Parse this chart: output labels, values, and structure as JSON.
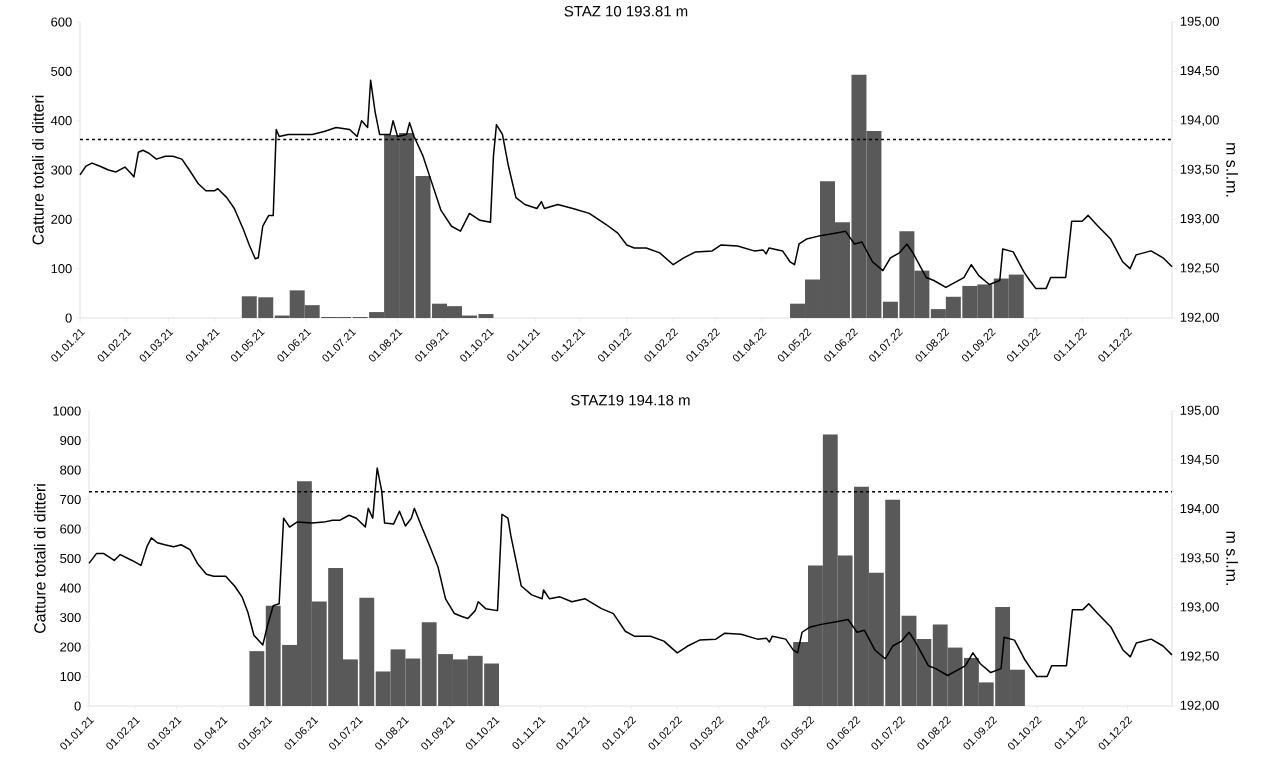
{
  "chart_data": [
    {
      "type": "bar",
      "title": "STAZ 10 193.81 m",
      "ylabel": "Catture totali di ditteri",
      "y2label": "m s.l.m.",
      "xlim": [
        "2021-01-01",
        "2022-12-31"
      ],
      "xticks": [
        {
          "value": "2021-01-01",
          "label": "01.01.21"
        },
        {
          "value": "2021-02-01",
          "label": "01.02.21"
        },
        {
          "value": "2021-03-01",
          "label": "01.03.21"
        },
        {
          "value": "2021-04-01",
          "label": "01.04.21"
        },
        {
          "value": "2021-05-01",
          "label": "01.05.21"
        },
        {
          "value": "2021-06-01",
          "label": "01.06.21"
        },
        {
          "value": "2021-07-01",
          "label": "01.07.21"
        },
        {
          "value": "2021-08-01",
          "label": "01.08.21"
        },
        {
          "value": "2021-09-01",
          "label": "01.09.21"
        },
        {
          "value": "2021-10-01",
          "label": "01.10.21"
        },
        {
          "value": "2021-11-01",
          "label": "01.11.21"
        },
        {
          "value": "2021-12-01",
          "label": "01.12.21"
        },
        {
          "value": "2022-01-01",
          "label": "01.01.22"
        },
        {
          "value": "2022-02-01",
          "label": "01.02.22"
        },
        {
          "value": "2022-03-01",
          "label": "01.03.22"
        },
        {
          "value": "2022-04-01",
          "label": "01.04.22"
        },
        {
          "value": "2022-05-01",
          "label": "01.05.22"
        },
        {
          "value": "2022-06-01",
          "label": "01.06.22"
        },
        {
          "value": "2022-07-01",
          "label": "01.07.22"
        },
        {
          "value": "2022-08-01",
          "label": "01.08.22"
        },
        {
          "value": "2022-09-01",
          "label": "01.09.22"
        },
        {
          "value": "2022-10-01",
          "label": "01.10.22"
        },
        {
          "value": "2022-11-01",
          "label": "01.11.22"
        },
        {
          "value": "2022-12-01",
          "label": "01.12.22"
        }
      ],
      "ylim": [
        0,
        600
      ],
      "yticks": [
        0,
        100,
        200,
        300,
        400,
        500,
        600
      ],
      "y2lim": [
        192,
        195
      ],
      "y2ticks": [
        {
          "value": 192,
          "label": "192,00"
        },
        {
          "value": 192.5,
          "label": "192,50"
        },
        {
          "value": 193,
          "label": "193,00"
        },
        {
          "value": 193.5,
          "label": "193,50"
        },
        {
          "value": 194,
          "label": "194,00"
        },
        {
          "value": 194.5,
          "label": "194,50"
        },
        {
          "value": 195,
          "label": "195,00"
        }
      ],
      "ref_lines": [
        {
          "axis": "y2",
          "value": 193.81,
          "color": "#000000",
          "line_style": "dashed"
        }
      ],
      "series": [
        {
          "color": "#595959",
          "x": [
            "2021-04-24",
            "2021-05-05",
            "2021-05-16",
            "2021-05-26",
            "2021-06-05",
            "2021-06-16",
            "2021-06-26",
            "2021-07-07",
            "2021-07-18",
            "2021-07-28",
            "2021-08-07",
            "2021-08-18",
            "2021-08-29",
            "2021-09-08",
            "2021-09-18",
            "2021-09-29",
            "2022-04-25",
            "2022-05-05",
            "2022-05-15",
            "2022-05-25",
            "2022-06-05",
            "2022-06-15",
            "2022-06-26",
            "2022-07-07",
            "2022-07-17",
            "2022-07-28",
            "2022-08-07",
            "2022-08-18",
            "2022-08-28",
            "2022-09-08",
            "2022-09-18"
          ],
          "values": [
            44,
            42,
            5,
            56,
            26,
            2,
            2,
            2,
            12,
            371,
            375,
            288,
            29,
            24,
            5,
            8,
            29,
            78,
            277,
            194,
            493,
            379,
            33,
            176,
            96,
            18,
            43,
            65,
            68,
            80,
            88
          ]
        },
        {
          "type": "line",
          "axis": "y2",
          "color": "#000000",
          "x": [
            "2021-01-01",
            "2021-01-05",
            "2021-01-09",
            "2021-01-14",
            "2021-01-20",
            "2021-01-25",
            "2021-01-31",
            "2021-02-05",
            "2021-02-06",
            "2021-02-09",
            "2021-02-12",
            "2021-02-16",
            "2021-02-21",
            "2021-02-27",
            "2021-03-04",
            "2021-03-10",
            "2021-03-15",
            "2021-03-21",
            "2021-03-26",
            "2021-04-01",
            "2021-04-03",
            "2021-04-09",
            "2021-04-14",
            "2021-04-20",
            "2021-04-24",
            "2021-04-28",
            "2021-04-30",
            "2021-05-03",
            "2021-05-07",
            "2021-05-10",
            "2021-05-12",
            "2021-05-14",
            "2021-05-20",
            "2021-05-25",
            "2021-06-05",
            "2021-06-13",
            "2021-06-21",
            "2021-06-30",
            "2021-07-05",
            "2021-07-08",
            "2021-07-12",
            "2021-07-14",
            "2021-07-17",
            "2021-07-20",
            "2021-07-27",
            "2021-07-29",
            "2021-08-01",
            "2021-08-07",
            "2021-08-09",
            "2021-08-12",
            "2021-08-18",
            "2021-08-23",
            "2021-08-30",
            "2021-09-06",
            "2021-09-12",
            "2021-09-18",
            "2021-09-22",
            "2021-09-25",
            "2021-10-02",
            "2021-10-04",
            "2021-10-06",
            "2021-10-10",
            "2021-10-14",
            "2021-10-19",
            "2021-10-25",
            "2021-11-02",
            "2021-11-05",
            "2021-11-07",
            "2021-11-16",
            "2021-11-26",
            "2021-12-07",
            "2021-12-18",
            "2021-12-26",
            "2022-01-01",
            "2022-01-06",
            "2022-01-14",
            "2022-01-23",
            "2022-02-01",
            "2022-02-08",
            "2022-02-16",
            "2022-02-27",
            "2022-03-05",
            "2022-03-16",
            "2022-03-27",
            "2022-04-02",
            "2022-04-04",
            "2022-04-06",
            "2022-04-15",
            "2022-04-20",
            "2022-04-23",
            "2022-04-26",
            "2022-05-01",
            "2022-05-09",
            "2022-05-20",
            "2022-05-27",
            "2022-06-02",
            "2022-06-07",
            "2022-06-14",
            "2022-06-21",
            "2022-06-26",
            "2022-07-02",
            "2022-07-07",
            "2022-07-11",
            "2022-07-20",
            "2022-07-25",
            "2022-08-02",
            "2022-08-08",
            "2022-08-14",
            "2022-08-19",
            "2022-08-24",
            "2022-08-31",
            "2022-09-07",
            "2022-09-09",
            "2022-09-16",
            "2022-09-23",
            "2022-09-27",
            "2022-10-01",
            "2022-10-08",
            "2022-10-11",
            "2022-10-21",
            "2022-10-25",
            "2022-11-01",
            "2022-11-05",
            "2022-11-11",
            "2022-11-20",
            "2022-11-28",
            "2022-12-03",
            "2022-12-07",
            "2022-12-17",
            "2022-12-25",
            "2022-12-31"
          ],
          "values": [
            193.45,
            193.54,
            193.57,
            193.54,
            193.5,
            193.48,
            193.53,
            193.45,
            193.43,
            193.68,
            193.7,
            193.67,
            193.61,
            193.64,
            193.64,
            193.61,
            193.5,
            193.36,
            193.29,
            193.29,
            193.31,
            193.22,
            193.11,
            192.9,
            192.74,
            192.6,
            192.61,
            192.93,
            193.04,
            193.04,
            193.91,
            193.84,
            193.86,
            193.86,
            193.86,
            193.89,
            193.93,
            193.91,
            193.84,
            194.0,
            193.93,
            194.41,
            194.09,
            193.86,
            193.86,
            194.0,
            193.84,
            193.86,
            193.98,
            193.84,
            193.64,
            193.41,
            193.09,
            192.93,
            192.88,
            193.06,
            193.02,
            192.99,
            192.97,
            193.64,
            193.96,
            193.86,
            193.54,
            193.22,
            193.15,
            193.11,
            193.18,
            193.11,
            193.15,
            193.11,
            193.06,
            192.95,
            192.86,
            192.74,
            192.71,
            192.71,
            192.66,
            192.54,
            192.61,
            192.67,
            192.68,
            192.74,
            192.73,
            192.68,
            192.69,
            192.65,
            192.71,
            192.68,
            192.57,
            192.54,
            192.75,
            192.8,
            192.83,
            192.86,
            192.88,
            192.75,
            192.77,
            192.57,
            192.48,
            192.61,
            192.66,
            192.75,
            192.66,
            192.41,
            192.38,
            192.31,
            192.36,
            192.41,
            192.54,
            192.43,
            192.34,
            192.38,
            192.7,
            192.67,
            192.47,
            192.38,
            192.3,
            192.3,
            192.41,
            192.41,
            192.98,
            192.98,
            193.04,
            192.94,
            192.8,
            192.57,
            192.5,
            192.64,
            192.68,
            192.61,
            192.52
          ]
        }
      ]
    },
    {
      "type": "bar",
      "title": "STAZ19 194.18 m",
      "ylabel": "Catture totali di ditteri",
      "y2label": "m s.l.m.",
      "xlim": [
        "2021-01-01",
        "2022-12-31"
      ],
      "xticks": [
        {
          "value": "2021-01-01",
          "label": "01.01.21"
        },
        {
          "value": "2021-02-01",
          "label": "01.02.21"
        },
        {
          "value": "2021-03-01",
          "label": "01.03.21"
        },
        {
          "value": "2021-04-01",
          "label": "01.04.21"
        },
        {
          "value": "2021-05-01",
          "label": "01.05.21"
        },
        {
          "value": "2021-06-01",
          "label": "01.06.21"
        },
        {
          "value": "2021-07-01",
          "label": "01.07.21"
        },
        {
          "value": "2021-08-01",
          "label": "01.08.21"
        },
        {
          "value": "2021-09-01",
          "label": "01.09.21"
        },
        {
          "value": "2021-10-01",
          "label": "01.10.21"
        },
        {
          "value": "2021-11-01",
          "label": "01.11.21"
        },
        {
          "value": "2021-12-01",
          "label": "01.12.21"
        },
        {
          "value": "2022-01-01",
          "label": "01.01.22"
        },
        {
          "value": "2022-02-01",
          "label": "01.02.22"
        },
        {
          "value": "2022-03-01",
          "label": "01.03.22"
        },
        {
          "value": "2022-04-01",
          "label": "01.04.22"
        },
        {
          "value": "2022-05-01",
          "label": "01.05.22"
        },
        {
          "value": "2022-06-01",
          "label": "01.06.22"
        },
        {
          "value": "2022-07-01",
          "label": "01.07.22"
        },
        {
          "value": "2022-08-01",
          "label": "01.08.22"
        },
        {
          "value": "2022-09-01",
          "label": "01.09.22"
        },
        {
          "value": "2022-10-01",
          "label": "01.10.22"
        },
        {
          "value": "2022-11-01",
          "label": "01.11.22"
        },
        {
          "value": "2022-12-01",
          "label": "01.12.22"
        }
      ],
      "ylim": [
        0,
        1000
      ],
      "yticks": [
        0,
        100,
        200,
        300,
        400,
        500,
        600,
        700,
        800,
        900,
        1000
      ],
      "y2lim": [
        192,
        195
      ],
      "y2ticks": [
        {
          "value": 192,
          "label": "192,00"
        },
        {
          "value": 192.5,
          "label": "192,50"
        },
        {
          "value": 193,
          "label": "193,00"
        },
        {
          "value": 193.5,
          "label": "193,50"
        },
        {
          "value": 194,
          "label": "194,00"
        },
        {
          "value": 194.5,
          "label": "194,50"
        },
        {
          "value": 195,
          "label": "195,00"
        }
      ],
      "ref_lines": [
        {
          "axis": "y2",
          "value": 194.18,
          "color": "#000000",
          "line_style": "dashed"
        }
      ],
      "series": [
        {
          "color": "#595959",
          "x": [
            "2021-04-24",
            "2021-05-05",
            "2021-05-16",
            "2021-05-26",
            "2021-06-05",
            "2021-06-16",
            "2021-06-26",
            "2021-07-07",
            "2021-07-18",
            "2021-07-28",
            "2021-08-07",
            "2021-08-18",
            "2021-08-29",
            "2021-09-08",
            "2021-09-18",
            "2021-09-29",
            "2022-04-25",
            "2022-05-05",
            "2022-05-15",
            "2022-05-25",
            "2022-06-05",
            "2022-06-15",
            "2022-06-26",
            "2022-07-07",
            "2022-07-17",
            "2022-07-28",
            "2022-08-07",
            "2022-08-18",
            "2022-08-28",
            "2022-09-08",
            "2022-09-18"
          ],
          "values": [
            186,
            340,
            207,
            762,
            354,
            468,
            158,
            367,
            117,
            192,
            161,
            284,
            176,
            158,
            170,
            144,
            217,
            476,
            920,
            510,
            743,
            452,
            699,
            306,
            227,
            276,
            198,
            163,
            80,
            336,
            123
          ]
        },
        {
          "type": "line",
          "axis": "y2",
          "color": "#000000",
          "x": [
            "2021-01-01",
            "2021-01-06",
            "2021-01-11",
            "2021-01-18",
            "2021-01-22",
            "2021-01-30",
            "2021-02-05",
            "2021-02-09",
            "2021-02-12",
            "2021-02-16",
            "2021-02-21",
            "2021-02-27",
            "2021-03-04",
            "2021-03-10",
            "2021-03-15",
            "2021-03-21",
            "2021-03-26",
            "2021-04-03",
            "2021-04-09",
            "2021-04-14",
            "2021-04-18",
            "2021-04-22",
            "2021-04-28",
            "2021-05-01",
            "2021-05-05",
            "2021-05-09",
            "2021-05-12",
            "2021-05-16",
            "2021-05-21",
            "2021-05-31",
            "2021-06-08",
            "2021-06-14",
            "2021-06-19",
            "2021-06-25",
            "2021-06-30",
            "2021-07-06",
            "2021-07-08",
            "2021-07-11",
            "2021-07-14",
            "2021-07-17",
            "2021-07-19",
            "2021-07-25",
            "2021-07-29",
            "2021-08-02",
            "2021-08-06",
            "2021-08-08",
            "2021-08-13",
            "2021-08-18",
            "2021-08-24",
            "2021-08-29",
            "2021-09-04",
            "2021-09-09",
            "2021-09-13",
            "2021-09-18",
            "2021-09-20",
            "2021-09-25",
            "2021-10-03",
            "2021-10-06",
            "2021-10-10",
            "2021-10-12",
            "2021-10-19",
            "2021-10-26",
            "2021-11-02",
            "2021-11-03",
            "2021-11-07",
            "2021-11-14",
            "2021-11-22",
            "2021-12-01",
            "2021-12-12",
            "2021-12-20",
            "2021-12-28",
            "2022-01-03",
            "2022-01-06",
            "2022-01-14",
            "2022-01-23",
            "2022-02-01",
            "2022-02-08",
            "2022-02-16",
            "2022-02-27",
            "2022-03-05",
            "2022-03-16",
            "2022-03-27",
            "2022-04-02",
            "2022-04-04",
            "2022-04-06",
            "2022-04-15",
            "2022-04-20",
            "2022-04-23",
            "2022-04-26",
            "2022-05-01",
            "2022-05-09",
            "2022-05-20",
            "2022-05-27",
            "2022-06-02",
            "2022-06-07",
            "2022-06-14",
            "2022-06-21",
            "2022-06-26",
            "2022-07-02",
            "2022-07-07",
            "2022-07-11",
            "2022-07-20",
            "2022-07-25",
            "2022-08-02",
            "2022-08-08",
            "2022-08-14",
            "2022-08-19",
            "2022-08-24",
            "2022-08-31",
            "2022-09-07",
            "2022-09-09",
            "2022-09-16",
            "2022-09-23",
            "2022-09-27",
            "2022-10-01",
            "2022-10-08",
            "2022-10-11",
            "2022-10-21",
            "2022-10-25",
            "2022-11-01",
            "2022-11-05",
            "2022-11-11",
            "2022-11-20",
            "2022-11-28",
            "2022-12-03",
            "2022-12-07",
            "2022-12-17",
            "2022-12-25",
            "2022-12-31"
          ],
          "values": [
            193.45,
            193.55,
            193.55,
            193.48,
            193.54,
            193.48,
            193.43,
            193.62,
            193.71,
            193.66,
            193.64,
            193.62,
            193.64,
            193.59,
            193.45,
            193.34,
            193.32,
            193.32,
            193.22,
            193.11,
            192.95,
            192.72,
            192.62,
            192.81,
            193.02,
            193.04,
            193.91,
            193.82,
            193.87,
            193.86,
            193.87,
            193.89,
            193.89,
            193.94,
            193.91,
            193.82,
            194.01,
            193.91,
            194.42,
            194.19,
            193.86,
            193.85,
            193.98,
            193.83,
            193.91,
            194.01,
            193.82,
            193.64,
            193.41,
            193.09,
            192.94,
            192.91,
            192.89,
            192.97,
            193.06,
            192.99,
            192.97,
            193.95,
            193.91,
            193.73,
            193.22,
            193.13,
            193.09,
            193.18,
            193.09,
            193.11,
            193.06,
            193.09,
            192.99,
            192.94,
            192.76,
            192.71,
            192.71,
            192.71,
            192.66,
            192.54,
            192.61,
            192.67,
            192.68,
            192.74,
            192.73,
            192.68,
            192.69,
            192.65,
            192.71,
            192.68,
            192.57,
            192.54,
            192.75,
            192.8,
            192.83,
            192.86,
            192.88,
            192.75,
            192.77,
            192.57,
            192.48,
            192.61,
            192.66,
            192.75,
            192.66,
            192.41,
            192.38,
            192.31,
            192.36,
            192.41,
            192.54,
            192.43,
            192.34,
            192.38,
            192.7,
            192.67,
            192.47,
            192.38,
            192.3,
            192.3,
            192.41,
            192.41,
            192.98,
            192.98,
            193.04,
            192.94,
            192.8,
            192.57,
            192.5,
            192.64,
            192.68,
            192.61,
            192.52
          ]
        }
      ]
    }
  ]
}
